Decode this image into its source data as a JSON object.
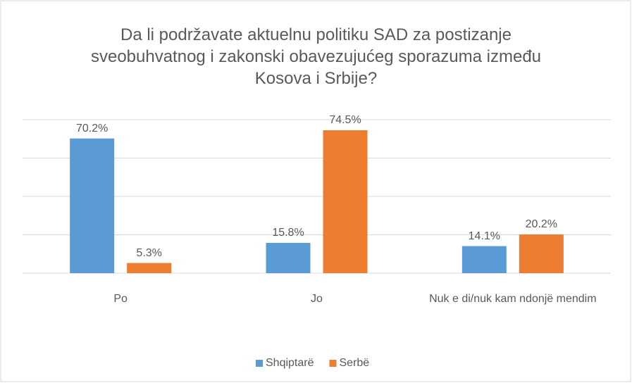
{
  "chart_data": {
    "type": "bar",
    "title": "Da li podržavate aktuelnu politiku SAD za postizanje sveobuhvatnog i zakonski obavezujućeg sporazuma između Kosova i Srbije?",
    "categories": [
      "Po",
      "Jo",
      "Nuk e di/nuk kam ndonjë mendim"
    ],
    "series": [
      {
        "name": "Shqiptarë",
        "color": "#5b9bd5",
        "values": [
          70.2,
          15.8,
          14.1
        ],
        "value_labels": [
          "70.2%",
          "15.8%",
          "14.1%"
        ]
      },
      {
        "name": "Serbë",
        "color": "#ed7d31",
        "values": [
          5.3,
          74.5,
          20.2
        ],
        "value_labels": [
          "5.3%",
          "74.5%",
          "20.2%"
        ]
      }
    ],
    "ylim": [
      0,
      80
    ],
    "yticks": [
      0,
      20,
      40,
      60,
      80
    ],
    "grid": true,
    "legend": "bottom"
  }
}
